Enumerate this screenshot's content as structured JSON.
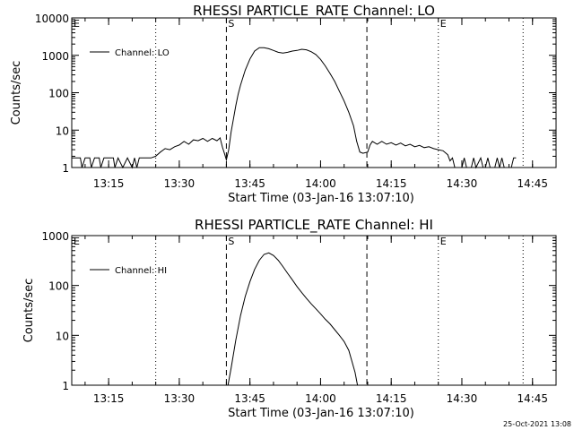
{
  "footer_timestamp": "25-Oct-2021 13:08",
  "chart_data": [
    {
      "type": "line",
      "title": "RHESSI PARTICLE_RATE Channel: LO",
      "ylabel": "Counts/sec",
      "xlabel": "Start Time (03-Jan-16 13:07:10)",
      "y_scale": "log",
      "ylim": [
        1,
        10000
      ],
      "xlim": [
        "13:07:10",
        "14:50:00"
      ],
      "y_tick_labels": [
        "1",
        "10",
        "100",
        "1000",
        "10000"
      ],
      "x_tick_labels": [
        "13:15",
        "13:30",
        "13:45",
        "14:00",
        "14:15",
        "14:30",
        "14:45"
      ],
      "legend": {
        "placement": "top-left",
        "label": "Channel: LO"
      },
      "markers": [
        {
          "label": "E",
          "time": "13:07:10",
          "style": "dotted"
        },
        {
          "label": "",
          "time": "13:25:00",
          "style": "dotted"
        },
        {
          "label": "S",
          "time": "13:40:00",
          "style": "dashed"
        },
        {
          "label": "",
          "time": "14:09:50",
          "style": "dashed"
        },
        {
          "label": "E",
          "time": "14:25:00",
          "style": "dotted"
        },
        {
          "label": "",
          "time": "14:43:00",
          "style": "dotted"
        }
      ],
      "series": [
        {
          "name": "Channel: LO",
          "points": [
            [
              "13:07:10",
              1.8
            ],
            [
              "13:09:00",
              1.8
            ],
            [
              "13:09:20",
              1
            ],
            [
              "13:10:00",
              1.8
            ],
            [
              "13:11:00",
              1.8
            ],
            [
              "13:11:20",
              1
            ],
            [
              "13:12:00",
              1.8
            ],
            [
              "13:13:00",
              1.8
            ],
            [
              "13:13:20",
              1
            ],
            [
              "13:14:00",
              1.8
            ],
            [
              "13:16:00",
              1.8
            ],
            [
              "13:16:20",
              1
            ],
            [
              "13:17:00",
              1.8
            ],
            [
              "13:18:00",
              1
            ],
            [
              "13:19:00",
              1.8
            ],
            [
              "13:20:00",
              1
            ],
            [
              "13:20:30",
              1.8
            ],
            [
              "13:21:00",
              1
            ],
            [
              "13:21:30",
              1.8
            ],
            [
              "13:22:00",
              1.8
            ],
            [
              "13:24:00",
              1.8
            ],
            [
              "13:25:00",
              2.0
            ],
            [
              "13:26:00",
              2.6
            ],
            [
              "13:27:00",
              3.2
            ],
            [
              "13:28:00",
              3.0
            ],
            [
              "13:29:00",
              3.6
            ],
            [
              "13:30:00",
              4.0
            ],
            [
              "13:31:00",
              5.0
            ],
            [
              "13:32:00",
              4.2
            ],
            [
              "13:33:00",
              5.5
            ],
            [
              "13:34:00",
              5.2
            ],
            [
              "13:35:00",
              6.0
            ],
            [
              "13:36:00",
              5.0
            ],
            [
              "13:37:00",
              6.0
            ],
            [
              "13:38:00",
              5.2
            ],
            [
              "13:38:40",
              6.2
            ],
            [
              "13:39:10",
              3.5
            ],
            [
              "13:39:40",
              2.2
            ],
            [
              "13:40:00",
              1.6
            ],
            [
              "13:40:30",
              3.0
            ],
            [
              "13:41:00",
              9.0
            ],
            [
              "13:41:30",
              20
            ],
            [
              "13:42:00",
              45
            ],
            [
              "13:42:30",
              90
            ],
            [
              "13:43:00",
              160
            ],
            [
              "13:44:00",
              400
            ],
            [
              "13:45:00",
              800
            ],
            [
              "13:46:00",
              1300
            ],
            [
              "13:47:00",
              1600
            ],
            [
              "13:48:00",
              1600
            ],
            [
              "13:49:00",
              1500
            ],
            [
              "13:50:00",
              1350
            ],
            [
              "13:51:00",
              1200
            ],
            [
              "13:52:00",
              1150
            ],
            [
              "13:53:00",
              1200
            ],
            [
              "13:54:00",
              1300
            ],
            [
              "13:55:00",
              1350
            ],
            [
              "13:56:00",
              1450
            ],
            [
              "13:57:00",
              1400
            ],
            [
              "13:58:00",
              1250
            ],
            [
              "13:59:00",
              1050
            ],
            [
              "14:00:00",
              780
            ],
            [
              "14:01:00",
              520
            ],
            [
              "14:02:00",
              330
            ],
            [
              "14:03:00",
              200
            ],
            [
              "14:04:00",
              110
            ],
            [
              "14:05:00",
              60
            ],
            [
              "14:06:00",
              30
            ],
            [
              "14:07:00",
              13
            ],
            [
              "14:07:40",
              5
            ],
            [
              "14:08:20",
              2.6
            ],
            [
              "14:09:00",
              2.4
            ],
            [
              "14:10:00",
              2.6
            ],
            [
              "14:10:30",
              4.0
            ],
            [
              "14:11:00",
              5.0
            ],
            [
              "14:12:00",
              4.2
            ],
            [
              "14:13:00",
              5.0
            ],
            [
              "14:14:00",
              4.2
            ],
            [
              "14:15:00",
              4.6
            ],
            [
              "14:16:00",
              4.0
            ],
            [
              "14:17:00",
              4.5
            ],
            [
              "14:18:00",
              3.8
            ],
            [
              "14:19:00",
              4.2
            ],
            [
              "14:20:00",
              3.6
            ],
            [
              "14:21:00",
              3.9
            ],
            [
              "14:22:00",
              3.4
            ],
            [
              "14:23:00",
              3.6
            ],
            [
              "14:24:00",
              3.2
            ],
            [
              "14:25:00",
              3.0
            ],
            [
              "14:26:00",
              2.8
            ],
            [
              "14:27:00",
              2.2
            ],
            [
              "14:27:30",
              1.5
            ],
            [
              "14:28:00",
              1.8
            ],
            [
              "14:28:30",
              1
            ],
            [
              "14:29:00",
              1
            ],
            [
              "14:30:00",
              1
            ],
            [
              "14:30:30",
              1.8
            ],
            [
              "14:31:00",
              1
            ],
            [
              "14:32:00",
              1
            ],
            [
              "14:32:30",
              1.8
            ],
            [
              "14:33:00",
              1
            ],
            [
              "14:34:00",
              1.8
            ],
            [
              "14:34:30",
              1
            ],
            [
              "14:35:00",
              1
            ],
            [
              "14:35:30",
              1.8
            ],
            [
              "14:36:00",
              1
            ],
            [
              "14:37:00",
              1
            ],
            [
              "14:37:30",
              1.8
            ],
            [
              "14:38:00",
              1
            ],
            [
              "14:38:30",
              1.8
            ],
            [
              "14:39:00",
              1
            ],
            [
              "14:40:30",
              1
            ],
            [
              "14:41:00",
              1.8
            ],
            [
              "14:41:30",
              1.8
            ]
          ]
        }
      ]
    },
    {
      "type": "line",
      "title": "RHESSI PARTICLE_RATE Channel: HI",
      "ylabel": "Counts/sec",
      "xlabel": "Start Time (03-Jan-16 13:07:10)",
      "y_scale": "log",
      "ylim": [
        1,
        1000
      ],
      "xlim": [
        "13:07:10",
        "14:50:00"
      ],
      "y_tick_labels": [
        "1",
        "10",
        "100",
        "1000"
      ],
      "x_tick_labels": [
        "13:15",
        "13:30",
        "13:45",
        "14:00",
        "14:15",
        "14:30",
        "14:45"
      ],
      "legend": {
        "placement": "top-left",
        "label": "Channel: HI"
      },
      "markers": [
        {
          "label": "E",
          "time": "13:07:10",
          "style": "dotted"
        },
        {
          "label": "",
          "time": "13:25:00",
          "style": "dotted"
        },
        {
          "label": "S",
          "time": "13:40:00",
          "style": "dashed"
        },
        {
          "label": "",
          "time": "14:09:50",
          "style": "dashed"
        },
        {
          "label": "E",
          "time": "14:25:00",
          "style": "dotted"
        },
        {
          "label": "",
          "time": "14:43:00",
          "style": "dotted"
        }
      ],
      "series": [
        {
          "name": "Channel: HI",
          "points": [
            [
              "13:40:20",
              1
            ],
            [
              "13:41:00",
              2.2
            ],
            [
              "13:42:00",
              8
            ],
            [
              "13:43:00",
              25
            ],
            [
              "13:44:00",
              60
            ],
            [
              "13:45:00",
              120
            ],
            [
              "13:46:00",
              210
            ],
            [
              "13:47:00",
              320
            ],
            [
              "13:48:00",
              420
            ],
            [
              "13:49:00",
              450
            ],
            [
              "13:50:00",
              400
            ],
            [
              "13:51:00",
              320
            ],
            [
              "13:52:00",
              240
            ],
            [
              "13:53:00",
              175
            ],
            [
              "13:54:00",
              130
            ],
            [
              "13:55:00",
              95
            ],
            [
              "13:56:00",
              72
            ],
            [
              "13:57:00",
              55
            ],
            [
              "13:58:00",
              43
            ],
            [
              "13:59:00",
              34
            ],
            [
              "14:00:00",
              27
            ],
            [
              "14:01:00",
              21
            ],
            [
              "14:02:00",
              17
            ],
            [
              "14:03:00",
              13
            ],
            [
              "14:04:00",
              10
            ],
            [
              "14:05:00",
              7.5
            ],
            [
              "14:06:00",
              5
            ],
            [
              "14:06:40",
              3
            ],
            [
              "14:07:20",
              1.8
            ],
            [
              "14:07:50",
              1
            ]
          ]
        }
      ]
    }
  ]
}
